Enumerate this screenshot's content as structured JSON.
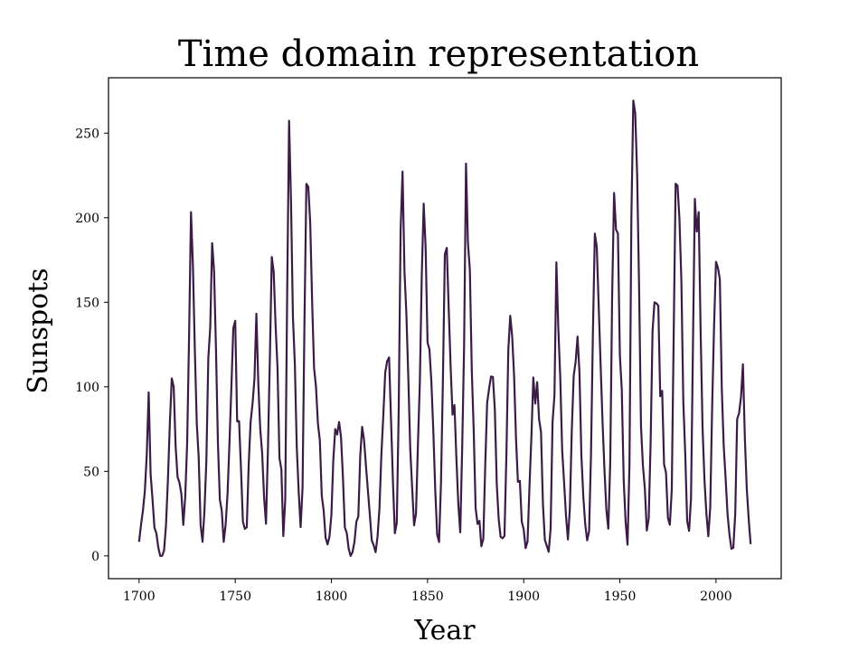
{
  "chart_data": {
    "type": "line",
    "title": "Time domain representation",
    "xlabel": "Year",
    "ylabel": "Sunspots",
    "color": "#3b1c47",
    "x": [
      1700,
      1701,
      1702,
      1703,
      1704,
      1705,
      1706,
      1707,
      1708,
      1709,
      1710,
      1711,
      1712,
      1713,
      1714,
      1715,
      1716,
      1717,
      1718,
      1719,
      1720,
      1721,
      1722,
      1723,
      1724,
      1725,
      1726,
      1727,
      1728,
      1729,
      1730,
      1731,
      1732,
      1733,
      1734,
      1735,
      1736,
      1737,
      1738,
      1739,
      1740,
      1741,
      1742,
      1743,
      1744,
      1745,
      1746,
      1747,
      1748,
      1749,
      1750,
      1751,
      1752,
      1753,
      1754,
      1755,
      1756,
      1757,
      1758,
      1759,
      1760,
      1761,
      1762,
      1763,
      1764,
      1765,
      1766,
      1767,
      1768,
      1769,
      1770,
      1771,
      1772,
      1773,
      1774,
      1775,
      1776,
      1777,
      1778,
      1779,
      1780,
      1781,
      1782,
      1783,
      1784,
      1785,
      1786,
      1787,
      1788,
      1789,
      1790,
      1791,
      1792,
      1793,
      1794,
      1795,
      1796,
      1797,
      1798,
      1799,
      1800,
      1801,
      1802,
      1803,
      1804,
      1805,
      1806,
      1807,
      1808,
      1809,
      1810,
      1811,
      1812,
      1813,
      1814,
      1815,
      1816,
      1817,
      1818,
      1819,
      1820,
      1821,
      1822,
      1823,
      1824,
      1825,
      1826,
      1827,
      1828,
      1829,
      1830,
      1831,
      1832,
      1833,
      1834,
      1835,
      1836,
      1837,
      1838,
      1839,
      1840,
      1841,
      1842,
      1843,
      1844,
      1845,
      1846,
      1847,
      1848,
      1849,
      1850,
      1851,
      1852,
      1853,
      1854,
      1855,
      1856,
      1857,
      1858,
      1859,
      1860,
      1861,
      1862,
      1863,
      1864,
      1865,
      1866,
      1867,
      1868,
      1869,
      1870,
      1871,
      1872,
      1873,
      1874,
      1875,
      1876,
      1877,
      1878,
      1879,
      1880,
      1881,
      1882,
      1883,
      1884,
      1885,
      1886,
      1887,
      1888,
      1889,
      1890,
      1891,
      1892,
      1893,
      1894,
      1895,
      1896,
      1897,
      1898,
      1899,
      1900,
      1901,
      1902,
      1903,
      1904,
      1905,
      1906,
      1907,
      1908,
      1909,
      1910,
      1911,
      1912,
      1913,
      1914,
      1915,
      1916,
      1917,
      1918,
      1919,
      1920,
      1921,
      1922,
      1923,
      1924,
      1925,
      1926,
      1927,
      1928,
      1929,
      1930,
      1931,
      1932,
      1933,
      1934,
      1935,
      1936,
      1937,
      1938,
      1939,
      1940,
      1941,
      1942,
      1943,
      1944,
      1945,
      1946,
      1947,
      1948,
      1949,
      1950,
      1951,
      1952,
      1953,
      1954,
      1955,
      1956,
      1957,
      1958,
      1959,
      1960,
      1961,
      1962,
      1963,
      1964,
      1965,
      1966,
      1967,
      1968,
      1969,
      1970,
      1971,
      1972,
      1973,
      1974,
      1975,
      1976,
      1977,
      1978,
      1979,
      1980,
      1981,
      1982,
      1983,
      1984,
      1985,
      1986,
      1987,
      1988,
      1989,
      1990,
      1991,
      1992,
      1993,
      1994,
      1995,
      1996,
      1997,
      1998,
      1999,
      2000,
      2001,
      2002,
      2003,
      2004,
      2005,
      2006,
      2007,
      2008,
      2009,
      2010,
      2011,
      2012,
      2013,
      2014,
      2015,
      2016,
      2017,
      2018
    ],
    "values": [
      8.3,
      18.3,
      26.7,
      38.3,
      60.0,
      96.7,
      48.3,
      33.3,
      16.7,
      13.3,
      5.0,
      0.0,
      0.0,
      3.3,
      18.3,
      45.0,
      78.3,
      105.0,
      100.0,
      65.0,
      46.7,
      43.3,
      36.7,
      18.3,
      35.0,
      66.7,
      130.0,
      203.3,
      171.7,
      121.7,
      78.3,
      58.3,
      18.3,
      8.3,
      26.7,
      56.7,
      116.7,
      135.0,
      185.0,
      168.3,
      121.7,
      66.7,
      33.3,
      26.7,
      8.3,
      18.3,
      36.7,
      66.7,
      100.0,
      134.8,
      139.0,
      79.5,
      79.7,
      51.2,
      20.3,
      16.0,
      17.0,
      54.0,
      79.3,
      90.0,
      104.8,
      143.2,
      102.0,
      75.2,
      60.7,
      34.8,
      19.0,
      63.0,
      116.3,
      176.8,
      168.0,
      136.0,
      110.8,
      58.0,
      51.0,
      11.7,
      33.0,
      154.2,
      257.3,
      209.8,
      141.3,
      113.5,
      64.2,
      38.0,
      17.0,
      40.2,
      138.2,
      220.0,
      218.2,
      196.8,
      149.8,
      111.0,
      100.0,
      78.2,
      68.3,
      35.5,
      26.7,
      10.7,
      6.8,
      11.3,
      24.2,
      56.7,
      75.0,
      71.8,
      79.2,
      70.3,
      46.8,
      16.8,
      13.5,
      4.2,
      0.0,
      2.3,
      8.3,
      20.3,
      23.2,
      59.0,
      76.3,
      68.3,
      52.9,
      38.5,
      24.2,
      9.2,
      6.3,
      2.2,
      11.4,
      28.2,
      59.9,
      83.0,
      108.5,
      115.2,
      117.4,
      80.8,
      44.3,
      13.4,
      19.5,
      85.8,
      192.7,
      227.3,
      168.7,
      143.0,
      105.5,
      63.3,
      40.3,
      18.1,
      25.1,
      65.8,
      102.7,
      166.3,
      208.3,
      182.5,
      126.3,
      122.0,
      102.7,
      74.1,
      39.0,
      12.7,
      8.2,
      43.4,
      104.4,
      178.3,
      182.2,
      146.6,
      112.1,
      83.5,
      89.2,
      57.8,
      30.7,
      13.9,
      62.8,
      123.6,
      232.0,
      185.3,
      169.2,
      110.1,
      74.5,
      28.3,
      18.9,
      20.7,
      5.7,
      10.0,
      53.7,
      90.5,
      99.0,
      106.1,
      105.8,
      86.3,
      42.4,
      21.8,
      11.2,
      10.4,
      11.8,
      59.5,
      121.7,
      142.0,
      130.0,
      106.6,
      69.4,
      43.8,
      44.4,
      20.2,
      15.7,
      4.6,
      8.5,
      40.8,
      70.1,
      105.5,
      90.1,
      102.8,
      80.9,
      73.2,
      30.9,
      9.5,
      6.0,
      2.4,
      16.1,
      79.0,
      95.0,
      173.6,
      134.6,
      105.7,
      62.7,
      43.5,
      23.7,
      9.7,
      27.9,
      74.0,
      106.5,
      114.7,
      129.7,
      108.2,
      59.4,
      35.1,
      18.6,
      9.2,
      14.6,
      60.2,
      132.8,
      190.6,
      182.6,
      148.0,
      113.0,
      79.2,
      50.8,
      27.1,
      16.1,
      55.3,
      154.3,
      214.7,
      193.0,
      190.7,
      118.9,
      98.3,
      45.0,
      20.1,
      6.6,
      54.2,
      200.7,
      269.3,
      261.7,
      225.1,
      159.0,
      76.4,
      53.4,
      39.9,
      15.0,
      22.0,
      66.8,
      132.9,
      150.0,
      149.4,
      148.0,
      94.4,
      97.6,
      54.1,
      49.2,
      22.5,
      18.4,
      39.3,
      131.0,
      220.1,
      218.9,
      198.9,
      162.4,
      91.0,
      60.5,
      20.6,
      14.8,
      33.9,
      123.0,
      211.1,
      191.8,
      203.3,
      133.0,
      76.1,
      44.9,
      25.1,
      11.6,
      28.9,
      88.3,
      136.3,
      173.9,
      170.4,
      163.6,
      99.3,
      65.3,
      45.8,
      24.7,
      12.6,
      4.2,
      4.8,
      24.9,
      80.8,
      84.5,
      94.0,
      113.3,
      69.8,
      39.8,
      21.7,
      7.0
    ],
    "xlim": [
      1684.1,
      2033.9
    ],
    "xticks": [
      1700,
      1750,
      1800,
      1850,
      1900,
      1950,
      2000
    ],
    "ylim": [
      -13.465,
      282.765
    ],
    "yticks": [
      0,
      50,
      100,
      150,
      200,
      250
    ]
  }
}
